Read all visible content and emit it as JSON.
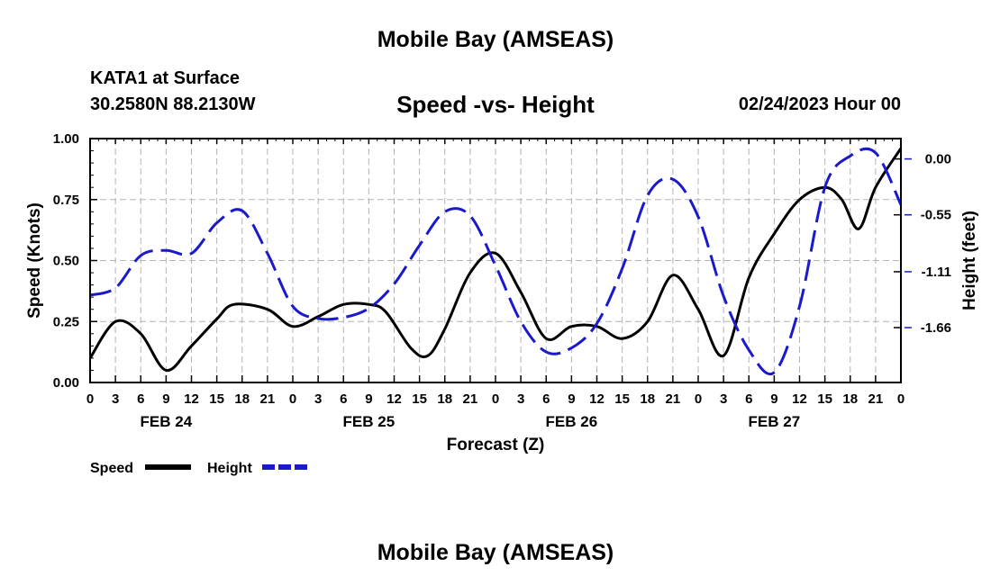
{
  "header": {
    "title": "Mobile Bay (AMSEAS)",
    "station": "KATA1 at Surface",
    "coords": "30.2580N  88.2130W",
    "subtitle": "Speed -vs- Height",
    "datetime": "02/24/2023 Hour 00"
  },
  "footer": {
    "title": "Mobile Bay (AMSEAS)"
  },
  "colors": {
    "speed": "#000000",
    "height": "#1a1acc",
    "grid": "#b4b4b4"
  },
  "chart_data": {
    "type": "line",
    "xlabel": "Forecast (Z)",
    "ylabel_left": "Speed (Knots)",
    "ylabel_right": "Height (feet)",
    "x_range_hours": [
      0,
      96
    ],
    "x_tick_labels": [
      "0",
      "3",
      "6",
      "9",
      "12",
      "15",
      "18",
      "21",
      "0",
      "3",
      "6",
      "9",
      "12",
      "15",
      "18",
      "21",
      "0",
      "3",
      "6",
      "9",
      "12",
      "15",
      "18",
      "21",
      "0",
      "3",
      "6",
      "9",
      "12",
      "15",
      "18",
      "21",
      "0"
    ],
    "date_labels": [
      {
        "label": "FEB 24",
        "hour": 9
      },
      {
        "label": "FEB 25",
        "hour": 33
      },
      {
        "label": "FEB 26",
        "hour": 57
      },
      {
        "label": "FEB 27",
        "hour": 81
      }
    ],
    "ylim_left": [
      0,
      1.0
    ],
    "yticks_left": [
      "0.00",
      "0.25",
      "0.50",
      "0.75",
      "1.00"
    ],
    "ylim_right": [
      -2.2,
      0.2
    ],
    "yticks_right": [
      {
        "label": "0.00",
        "value": 0.0
      },
      {
        "label": "-0.55",
        "value": -0.55
      },
      {
        "label": "-1.11",
        "value": -1.11
      },
      {
        "label": "-1.66",
        "value": -1.66
      }
    ],
    "grid": true,
    "legend": {
      "placement": "bottom-left",
      "entries": [
        "Speed",
        "Height"
      ]
    },
    "series": [
      {
        "name": "Speed",
        "axis": "left",
        "style": "solid",
        "x": [
          0,
          3,
          6,
          9,
          12,
          15,
          17,
          21,
          24,
          27,
          30,
          33,
          35,
          38,
          40,
          42,
          45,
          48,
          51,
          54,
          57,
          60,
          63,
          66,
          69,
          72,
          75,
          78,
          81,
          84,
          87,
          89,
          91,
          93,
          96
        ],
        "y": [
          0.1,
          0.25,
          0.2,
          0.05,
          0.15,
          0.26,
          0.32,
          0.3,
          0.23,
          0.27,
          0.32,
          0.32,
          0.29,
          0.14,
          0.11,
          0.22,
          0.45,
          0.53,
          0.37,
          0.18,
          0.23,
          0.23,
          0.18,
          0.25,
          0.44,
          0.3,
          0.11,
          0.43,
          0.61,
          0.75,
          0.8,
          0.75,
          0.63,
          0.8,
          0.96
        ]
      },
      {
        "name": "Height",
        "axis": "right",
        "style": "dashed",
        "x": [
          0,
          3,
          6,
          9,
          12,
          15,
          18,
          21,
          24,
          27,
          30,
          33,
          36,
          39,
          42,
          45,
          48,
          51,
          54,
          57,
          60,
          63,
          66,
          69,
          72,
          75,
          78,
          81,
          84,
          87,
          90,
          93,
          96
        ],
        "y": [
          -1.34,
          -1.27,
          -0.95,
          -0.9,
          -0.93,
          -0.63,
          -0.51,
          -0.93,
          -1.45,
          -1.57,
          -1.56,
          -1.47,
          -1.23,
          -0.85,
          -0.52,
          -0.56,
          -1.05,
          -1.6,
          -1.9,
          -1.86,
          -1.62,
          -1.08,
          -0.36,
          -0.2,
          -0.57,
          -1.35,
          -1.88,
          -2.1,
          -1.45,
          -0.28,
          0.03,
          0.06,
          -0.45
        ]
      }
    ]
  }
}
